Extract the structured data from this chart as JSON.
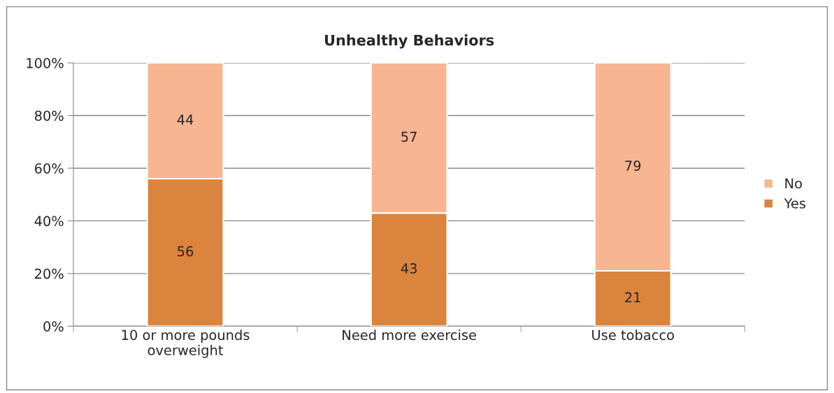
{
  "chart_data": {
    "type": "bar",
    "title": "Unhealthy Behaviors",
    "categories": [
      "10 or more pounds\noverweight",
      "Need more exercise",
      "Use tobacco"
    ],
    "stacked": true,
    "series": [
      {
        "name": "Yes",
        "color": "#db843d",
        "values": [
          56,
          43,
          21
        ]
      },
      {
        "name": "No",
        "color": "#f7b591",
        "values": [
          44,
          57,
          79
        ]
      }
    ],
    "ylim": [
      0,
      100
    ],
    "yticks": [
      {
        "value": 0,
        "label": "0%"
      },
      {
        "value": 20,
        "label": "20%"
      },
      {
        "value": 40,
        "label": "40%"
      },
      {
        "value": 60,
        "label": "60%"
      },
      {
        "value": 80,
        "label": "80%"
      },
      {
        "value": 100,
        "label": "100%"
      }
    ],
    "grid": "y",
    "legend": "right",
    "data_labels": true
  }
}
